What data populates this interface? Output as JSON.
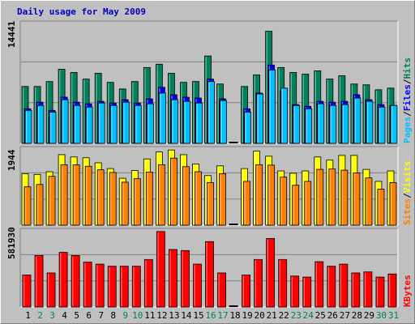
{
  "title": "Daily usage for May 2009",
  "colors": {
    "hits": "#00805c",
    "files": "#0000ff",
    "pages": "#00c0ff",
    "visits": "#ffff00",
    "sites": "#ff8000",
    "kbytes": "#ff0000",
    "weekend_label": "#00805c",
    "weekday_label": "#000000"
  },
  "chart_data": [
    {
      "type": "bar",
      "name": "hits-files-pages",
      "categories": [
        "1",
        "2",
        "3",
        "4",
        "5",
        "6",
        "7",
        "8",
        "9",
        "10",
        "11",
        "12",
        "13",
        "14",
        "15",
        "16",
        "17",
        "18",
        "19",
        "20",
        "21",
        "22",
        "23",
        "24",
        "25",
        "26",
        "27",
        "28",
        "29",
        "30",
        "31"
      ],
      "ymax_label": "14441",
      "ylim": [
        0,
        14441
      ],
      "legend": [
        "Pages",
        "Files",
        "Hits"
      ],
      "series": [
        {
          "name": "Hits",
          "values": [
            6900,
            6900,
            7500,
            9000,
            8600,
            7800,
            8500,
            7400,
            6600,
            7500,
            9200,
            9600,
            8500,
            7400,
            7500,
            10600,
            7200,
            0,
            6900,
            8300,
            13600,
            9200,
            8600,
            8400,
            8800,
            7800,
            8200,
            7200,
            7100,
            6500,
            6700
          ]
        },
        {
          "name": "Files",
          "values": [
            4200,
            5000,
            4000,
            5600,
            5000,
            4800,
            5100,
            4900,
            5300,
            4900,
            5400,
            6800,
            5900,
            5600,
            5500,
            7800,
            5400,
            0,
            4200,
            6100,
            9500,
            6400,
            4700,
            4500,
            5100,
            5000,
            5100,
            5900,
            5300,
            4700,
            4600
          ]
        },
        {
          "name": "Pages",
          "values": [
            4000,
            4600,
            3800,
            5300,
            4600,
            4400,
            4900,
            4600,
            5000,
            4600,
            4800,
            6100,
            5300,
            5100,
            4900,
            7500,
            5200,
            0,
            3800,
            6000,
            8900,
            6700,
            4600,
            4200,
            4800,
            4600,
            4700,
            5500,
            5100,
            4400,
            4600
          ]
        }
      ]
    },
    {
      "type": "bar",
      "name": "visits-sites",
      "categories": [
        "1",
        "2",
        "3",
        "4",
        "5",
        "6",
        "7",
        "8",
        "9",
        "10",
        "11",
        "12",
        "13",
        "14",
        "15",
        "16",
        "17",
        "18",
        "19",
        "20",
        "21",
        "22",
        "23",
        "24",
        "25",
        "26",
        "27",
        "28",
        "29",
        "30",
        "31"
      ],
      "ymax_label": "1944",
      "ylim": [
        0,
        1944
      ],
      "legend": [
        "Sites",
        "Visits"
      ],
      "series": [
        {
          "name": "Visits",
          "values": [
            1330,
            1310,
            1380,
            1820,
            1760,
            1740,
            1610,
            1460,
            1210,
            1410,
            1710,
            1890,
            1940,
            1820,
            1580,
            1280,
            1530,
            0,
            1460,
            1910,
            1780,
            1400,
            1340,
            1400,
            1760,
            1680,
            1800,
            1800,
            1440,
            1130,
            1400
          ]
        },
        {
          "name": "Sites",
          "values": [
            990,
            1050,
            1260,
            1560,
            1560,
            1520,
            1430,
            1360,
            1110,
            1200,
            1370,
            1560,
            1730,
            1510,
            1380,
            1100,
            1330,
            0,
            1130,
            1560,
            1550,
            1240,
            1030,
            1130,
            1440,
            1450,
            1420,
            1350,
            1220,
            930,
            1100
          ]
        }
      ]
    },
    {
      "type": "bar",
      "name": "kbytes",
      "categories": [
        "1",
        "2",
        "3",
        "4",
        "5",
        "6",
        "7",
        "8",
        "9",
        "10",
        "11",
        "12",
        "13",
        "14",
        "15",
        "16",
        "17",
        "18",
        "19",
        "20",
        "21",
        "22",
        "23",
        "24",
        "25",
        "26",
        "27",
        "28",
        "29",
        "30",
        "31"
      ],
      "ymax_label": "581930",
      "ylim": [
        0,
        581930
      ],
      "legend": [
        "KBytes"
      ],
      "series": [
        {
          "name": "KBytes",
          "values": [
            247000,
            398000,
            263000,
            422000,
            398000,
            347000,
            331000,
            315000,
            315000,
            315000,
            367000,
            583000,
            444000,
            436000,
            331000,
            505000,
            263000,
            0,
            247000,
            367000,
            529000,
            367000,
            239000,
            231000,
            350000,
            315000,
            331000,
            263000,
            271000,
            231000,
            255000
          ]
        }
      ]
    }
  ]
}
